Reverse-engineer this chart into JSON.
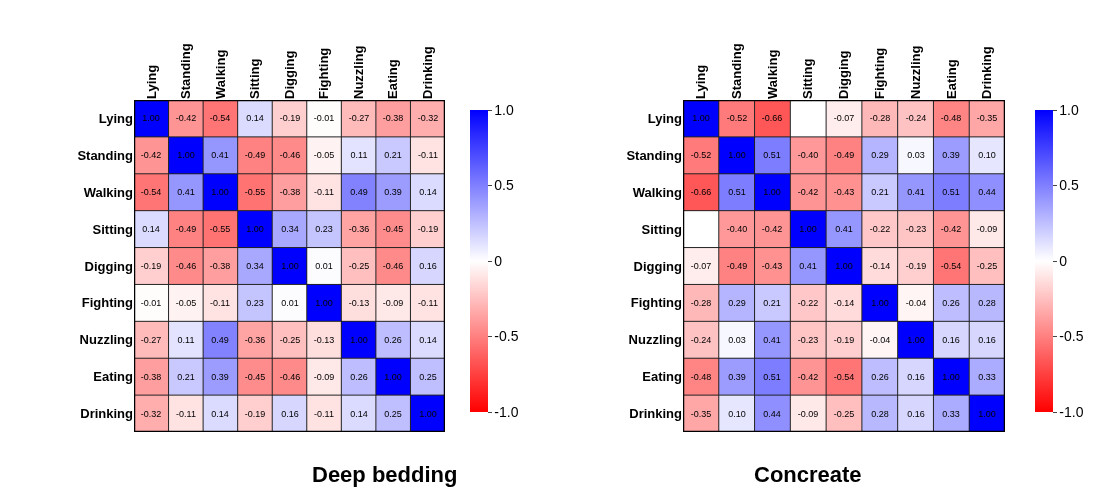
{
  "chart_data": [
    {
      "type": "heatmap",
      "title": "Deep bedding",
      "categories": [
        "Lying",
        "Standing",
        "Walking",
        "Sitting",
        "Digging",
        "Fighting",
        "Nuzzling",
        "Eating",
        "Drinking"
      ],
      "y_categories": [
        "Lying",
        "Standing",
        "Walking",
        "Sitting",
        "Digging",
        "Fighting",
        "Nuzzling",
        "Eating",
        "Drinking"
      ],
      "cells": [
        [
          1.0,
          -0.42,
          -0.54,
          0.14,
          -0.19,
          -0.01,
          -0.27,
          -0.38,
          -0.32
        ],
        [
          -0.42,
          1.0,
          0.41,
          -0.49,
          -0.46,
          -0.05,
          0.11,
          0.21,
          -0.11
        ],
        [
          -0.54,
          0.41,
          1.0,
          -0.55,
          -0.38,
          -0.11,
          0.49,
          0.39,
          0.14
        ],
        [
          0.14,
          -0.49,
          -0.55,
          1.0,
          0.34,
          0.23,
          -0.36,
          -0.45,
          -0.19
        ],
        [
          -0.19,
          -0.46,
          -0.38,
          0.34,
          1.0,
          0.01,
          -0.25,
          -0.46,
          0.16
        ],
        [
          -0.01,
          -0.05,
          -0.11,
          0.23,
          0.01,
          1.0,
          -0.13,
          -0.09,
          -0.11
        ],
        [
          -0.27,
          0.11,
          0.49,
          -0.36,
          -0.25,
          -0.13,
          1.0,
          0.26,
          0.14
        ],
        [
          -0.38,
          0.21,
          0.39,
          -0.45,
          -0.46,
          -0.09,
          0.26,
          1.0,
          0.25
        ],
        [
          -0.32,
          -0.11,
          0.14,
          -0.19,
          0.16,
          -0.11,
          0.14,
          0.25,
          1.0
        ]
      ],
      "cell_labels": [
        [
          "1.00",
          "-0.42",
          "-0.54",
          "0.14",
          "-0.19",
          "-0.01",
          "-0.27",
          "-0.38",
          "-0.32"
        ],
        [
          "-0.42",
          "1.00",
          "0.41",
          "-0.49",
          "-0.46",
          "-0.05",
          "0.11",
          "0.21",
          "-0.11"
        ],
        [
          "-0.54",
          "0.41",
          "1.00",
          "-0.55",
          "-0.38",
          "-0.11",
          "0.49",
          "0.39",
          "0.14"
        ],
        [
          "0.14",
          "-0.49",
          "-0.55",
          "1.00",
          "0.34",
          "0.23",
          "-0.36",
          "-0.45",
          "-0.19"
        ],
        [
          "-0.19",
          "-0.46",
          "-0.38",
          "0.34",
          "1.00",
          "0.01",
          "-0.25",
          "-0.46",
          "0.16"
        ],
        [
          "-0.01",
          "-0.05",
          "-0.11",
          "0.23",
          "0.01",
          "1.00",
          "-0.13",
          "-0.09",
          "-0.11"
        ],
        [
          "-0.27",
          "0.11",
          "0.49",
          "-0.36",
          "-0.25",
          "-0.13",
          "1.00",
          "0.26",
          "0.14"
        ],
        [
          "-0.38",
          "0.21",
          "0.39",
          "-0.45",
          "-0.46",
          "-0.09",
          "0.26",
          "1.00",
          "0.25"
        ],
        [
          "-0.32",
          "-0.11",
          "0.14",
          "-0.19",
          "0.16",
          "-0.11",
          "0.14",
          "0.25",
          "1.00"
        ]
      ],
      "clim": [
        -1,
        1
      ],
      "cticks": [
        {
          "value": -1,
          "label": "-1.0"
        },
        {
          "value": -0.5,
          "label": "-0.5"
        },
        0,
        {
          "value": 0.5,
          "label": "0.5"
        },
        {
          "value": 1,
          "label": "1.0"
        }
      ],
      "colors": [
        "#ff0000",
        "#ffffff",
        "#0000ff"
      ]
    },
    {
      "type": "heatmap",
      "title": "Concreate",
      "categories": [
        "Lying",
        "Standing",
        "Walking",
        "Sitting",
        "Digging",
        "Fighting",
        "Nuzzling",
        "Eating",
        "Drinking"
      ],
      "y_categories": [
        "Lying",
        "Standing",
        "Walking",
        "Sitting",
        "Digging",
        "Fighting",
        "Nuzzling",
        "Eating",
        "Drinking"
      ],
      "cells": [
        [
          1.0,
          -0.52,
          -0.66,
          null,
          -0.07,
          -0.28,
          -0.24,
          -0.48,
          -0.35
        ],
        [
          -0.52,
          1.0,
          0.51,
          -0.4,
          -0.49,
          0.29,
          0.03,
          0.39,
          0.1
        ],
        [
          -0.66,
          0.51,
          1.0,
          -0.42,
          -0.43,
          0.21,
          0.41,
          0.51,
          0.44
        ],
        [
          null,
          -0.4,
          -0.42,
          1.0,
          0.41,
          -0.22,
          -0.23,
          -0.42,
          -0.09
        ],
        [
          -0.07,
          -0.49,
          -0.43,
          0.41,
          1.0,
          -0.14,
          -0.19,
          -0.54,
          -0.25
        ],
        [
          -0.28,
          0.29,
          0.21,
          -0.22,
          -0.14,
          1.0,
          -0.04,
          0.26,
          0.28
        ],
        [
          -0.24,
          0.03,
          0.41,
          -0.23,
          -0.19,
          -0.04,
          1.0,
          0.16,
          0.16
        ],
        [
          -0.48,
          0.39,
          0.51,
          -0.42,
          -0.54,
          0.26,
          0.16,
          1.0,
          0.33
        ],
        [
          -0.35,
          0.1,
          0.44,
          -0.09,
          -0.25,
          0.28,
          0.16,
          0.33,
          1.0
        ]
      ],
      "cell_labels": [
        [
          "1.00",
          "-0.52",
          "-0.66",
          null,
          "-0.07",
          "-0.28",
          "-0.24",
          "-0.48",
          "-0.35"
        ],
        [
          "-0.52",
          "1.00",
          "0.51",
          "-0.40",
          "-0.49",
          "0.29",
          "0.03",
          "0.39",
          "0.10"
        ],
        [
          "-0.66",
          "0.51",
          "1.00",
          "-0.42",
          "-0.43",
          "0.21",
          "0.41",
          "0.51",
          "0.44"
        ],
        [
          null,
          "-0.40",
          "-0.42",
          "1.00",
          "0.41",
          "-0.22",
          "-0.23",
          "-0.42",
          "-0.09"
        ],
        [
          "-0.07",
          "-0.49",
          "-0.43",
          "0.41",
          "1.00",
          "-0.14",
          "-0.19",
          "-0.54",
          "-0.25"
        ],
        [
          "-0.28",
          "0.29",
          "0.21",
          "-0.22",
          "-0.14",
          "1.00",
          "-0.04",
          "0.26",
          "0.28"
        ],
        [
          "-0.24",
          "0.03",
          "0.41",
          "-0.23",
          "-0.19",
          "-0.04",
          "1.00",
          "0.16",
          "0.16"
        ],
        [
          "-0.48",
          "0.39",
          "0.51",
          "-0.42",
          "-0.54",
          "0.26",
          "0.16",
          "1.00",
          "0.33"
        ],
        [
          "-0.35",
          "0.10",
          "0.44",
          "-0.09",
          "-0.25",
          "0.28",
          "0.16",
          "0.33",
          "1.00"
        ]
      ],
      "clim": [
        -1,
        1
      ],
      "cticks": [
        {
          "value": -1,
          "label": "-1.0"
        },
        {
          "value": -0.5,
          "label": "-0.5"
        },
        0,
        {
          "value": 0.5,
          "label": "0.5"
        },
        {
          "value": 1,
          "label": "1.0"
        }
      ],
      "colors": [
        "#ff0000",
        "#ffffff",
        "#0000ff"
      ]
    }
  ]
}
